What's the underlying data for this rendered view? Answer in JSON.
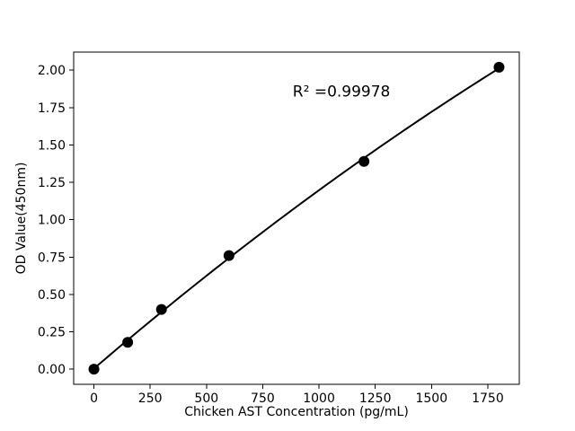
{
  "chart_data": {
    "type": "scatter",
    "title": "",
    "xlabel": "Chicken AST Concentration (pg/mL)",
    "ylabel": "OD Value(450nm)",
    "annotation": {
      "text": "R² =0.99978",
      "x": 1100,
      "y": 1.86
    },
    "x": [
      0,
      150,
      300,
      600,
      1200,
      1800
    ],
    "y": [
      0.0,
      0.18,
      0.4,
      0.76,
      1.39,
      2.02
    ],
    "fit": "quadratic",
    "xlim": [
      -90,
      1890
    ],
    "ylim": [
      -0.101,
      2.121
    ],
    "xticks": [
      "0",
      "250",
      "500",
      "750",
      "1000",
      "1250",
      "1500",
      "1750"
    ],
    "yticks": [
      "0.00",
      "0.25",
      "0.50",
      "0.75",
      "1.00",
      "1.25",
      "1.50",
      "1.75",
      "2.00"
    ],
    "grid": false,
    "legend": null,
    "marker_color": "#000000",
    "line_color": "#000000",
    "background": "#ffffff"
  }
}
